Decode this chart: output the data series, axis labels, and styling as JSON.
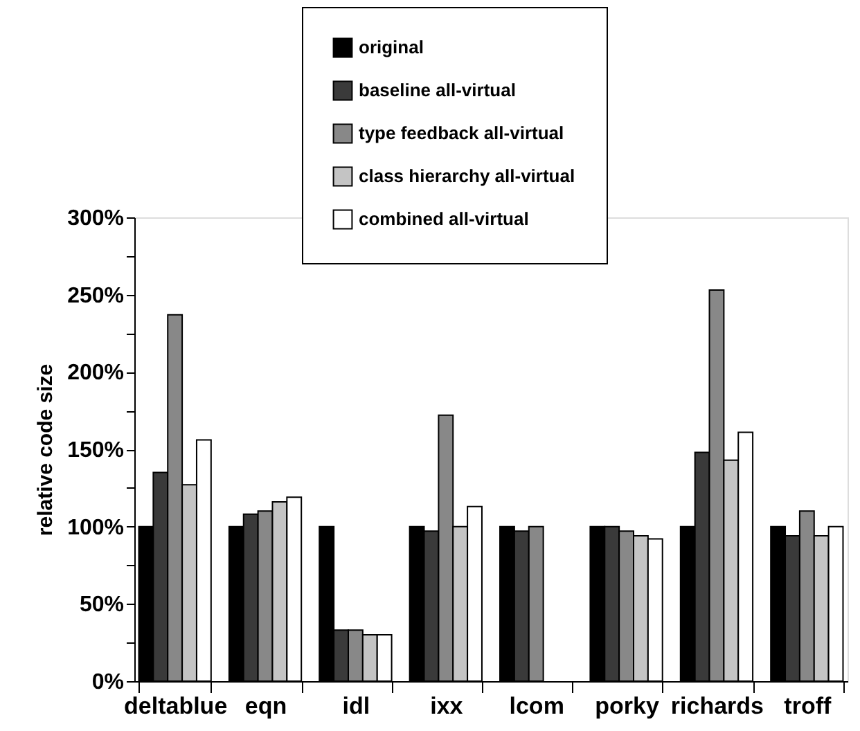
{
  "chart_data": {
    "type": "bar",
    "ylabel": "relative code size",
    "categories": [
      "deltablue",
      "eqn",
      "idl",
      "ixx",
      "lcom",
      "porky",
      "richards",
      "troff"
    ],
    "series": [
      {
        "name": "original",
        "color": "#000000",
        "values": [
          100,
          100,
          100,
          100,
          100,
          100,
          100,
          100
        ]
      },
      {
        "name": "baseline all-virtual",
        "color": "#3a3a3a",
        "values": [
          135,
          108,
          33,
          97,
          97,
          100,
          148,
          94
        ]
      },
      {
        "name": "type feedback all-virtual",
        "color": "#888888",
        "values": [
          237,
          110,
          33,
          172,
          100,
          97,
          253,
          110
        ]
      },
      {
        "name": "class hierarchy all-virtual",
        "color": "#c4c4c4",
        "values": [
          127,
          116,
          30,
          100,
          null,
          94,
          143,
          94
        ]
      },
      {
        "name": "combined all-virtual",
        "color": "#ffffff",
        "values": [
          156,
          119,
          30,
          113,
          null,
          92,
          161,
          100
        ]
      }
    ],
    "ylim": [
      0,
      300
    ],
    "yticks": [
      {
        "value": 0,
        "label": "0%"
      },
      {
        "value": 25,
        "label": null
      },
      {
        "value": 50,
        "label": "50%"
      },
      {
        "value": 75,
        "label": null
      },
      {
        "value": 100,
        "label": "100%"
      },
      {
        "value": 125,
        "label": null
      },
      {
        "value": 150,
        "label": "150%"
      },
      {
        "value": 175,
        "label": null
      },
      {
        "value": 200,
        "label": "200%"
      },
      {
        "value": 225,
        "label": null
      },
      {
        "value": 250,
        "label": "250%"
      },
      {
        "value": 275,
        "label": null
      },
      {
        "value": 300,
        "label": "300%"
      }
    ],
    "grid": false,
    "legend": "top"
  }
}
